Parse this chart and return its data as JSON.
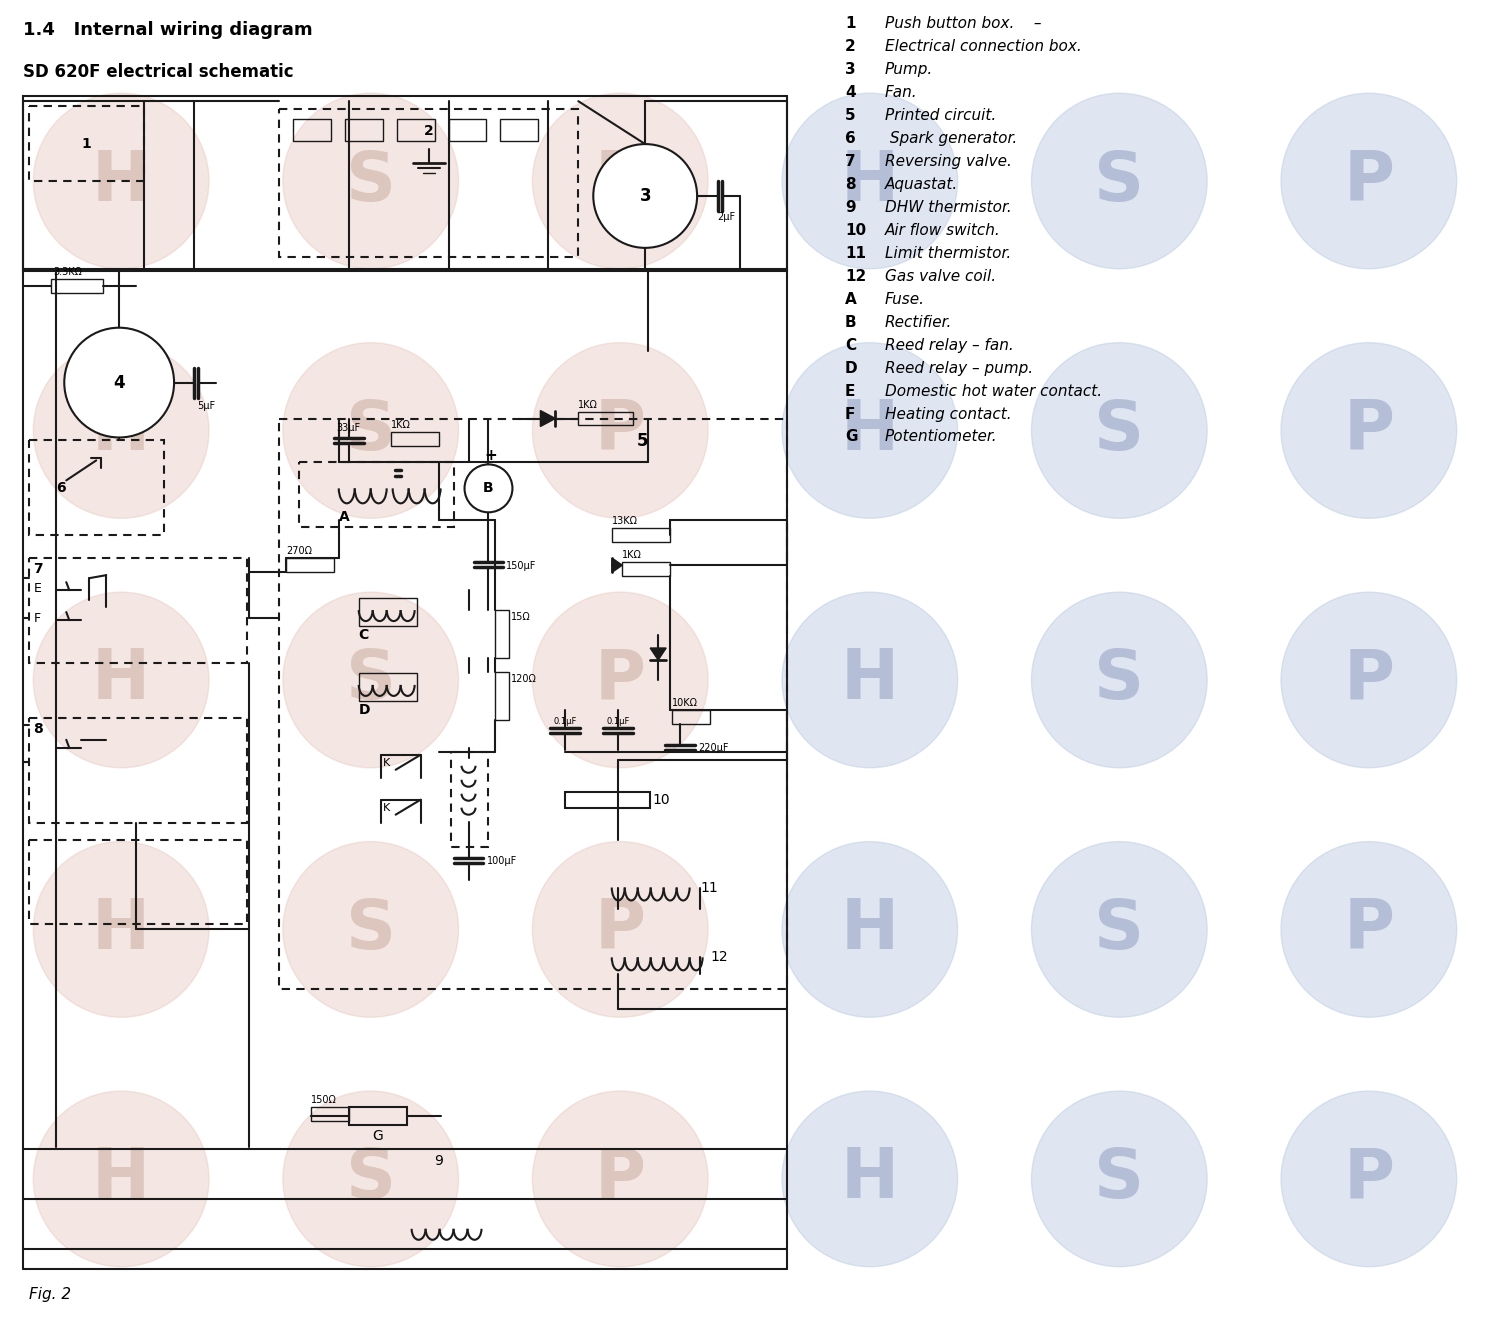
{
  "title1": "1.4   Internal wiring diagram",
  "title2": "SD 620F electrical schematic",
  "fig_label": "Fig. 2",
  "bg_color": "#ffffff",
  "legend_items": [
    [
      "1",
      "Push button box.    –"
    ],
    [
      "2",
      "Electrical connection box."
    ],
    [
      "3",
      "Pump."
    ],
    [
      "4",
      "Fan."
    ],
    [
      "5",
      "Printed circuit."
    ],
    [
      "6",
      " Spark generator."
    ],
    [
      "7",
      "Reversing valve."
    ],
    [
      "8",
      "Aquastat."
    ],
    [
      "9",
      "DHW thermistor."
    ],
    [
      "10",
      "Air flow switch."
    ],
    [
      "11",
      "Limit thermistor."
    ],
    [
      "12",
      "Gas valve coil."
    ],
    [
      "A",
      "Fuse."
    ],
    [
      "B",
      "Rectifier."
    ],
    [
      "C",
      "Reed relay – fan."
    ],
    [
      "D",
      "Reed relay – pump."
    ],
    [
      "E",
      "Domestic hot water contact."
    ],
    [
      "F",
      "Heating contact."
    ],
    [
      "G",
      "Potentiometer."
    ]
  ],
  "wm_pink": "#e8c8c0",
  "wm_blue": "#b8c8e0",
  "line_color": "#1a1a1a",
  "dashed_color": "#1a1a1a"
}
